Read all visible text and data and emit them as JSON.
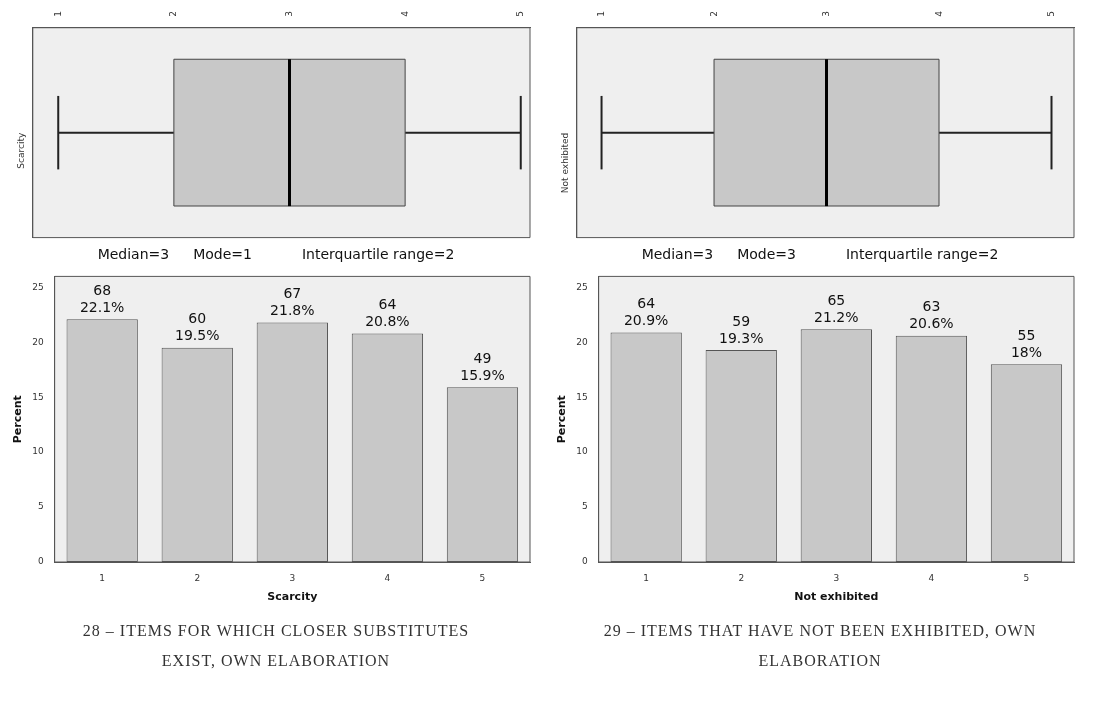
{
  "chart_data": [
    {
      "type": "box",
      "orientation": "horizontal",
      "categories": [
        "Scarcity"
      ],
      "color": "#c8c8c8",
      "boxes": [
        {
          "low": 1,
          "q1": 2,
          "median": 3,
          "q3": 4,
          "high": 5
        }
      ],
      "xlim": [
        0.78,
        5.08
      ],
      "xticks": [
        1,
        2,
        3,
        4,
        5
      ],
      "grid": false,
      "legend": false,
      "annotations": [
        "Median=3",
        "Mode=1",
        "Interquartile range=2"
      ]
    },
    {
      "type": "box",
      "orientation": "horizontal",
      "categories": [
        "Not exhibited"
      ],
      "color": "#c8c8c8",
      "boxes": [
        {
          "low": 1,
          "q1": 2,
          "median": 3,
          "q3": 4,
          "high": 5
        }
      ],
      "xlim": [
        0.78,
        5.2
      ],
      "xticks": [
        1,
        2,
        3,
        4,
        5
      ],
      "grid": false,
      "legend": false,
      "annotations": [
        "Median=3",
        "Mode=3",
        "Interquartile range=2"
      ]
    },
    {
      "type": "bar",
      "categories": [
        "1",
        "2",
        "3",
        "4",
        "5"
      ],
      "values": [
        22.1,
        19.5,
        21.8,
        20.8,
        15.9
      ],
      "color": "#c8c8c8",
      "value_labels": [
        "68\n22.1%",
        "60\n19.5%",
        "67\n21.8%",
        "64\n20.8%",
        "49\n15.9%"
      ],
      "xlabel": "Scarcity",
      "ylabel": "Percent",
      "ylim": [
        0,
        26
      ],
      "yticks": [
        0,
        5,
        10,
        15,
        20,
        25
      ],
      "grid": false,
      "legend": false,
      "annotations": [
        "28 – ITEMS FOR WHICH CLOSER SUBSTITUTES EXIST, OWN ELABORATION"
      ]
    },
    {
      "type": "bar",
      "categories": [
        "1",
        "2",
        "3",
        "4",
        "5"
      ],
      "values": [
        20.9,
        19.3,
        21.2,
        20.6,
        18
      ],
      "color": "#c8c8c8",
      "value_labels": [
        "64\n20.9%",
        "59\n19.3%",
        "65\n21.2%",
        "63\n20.6%",
        "55\n18%"
      ],
      "xlabel": "Not exhibited",
      "ylabel": "Percent",
      "ylim": [
        0,
        26
      ],
      "yticks": [
        0,
        5,
        10,
        15,
        20,
        25
      ],
      "grid": false,
      "legend": false,
      "annotations": [
        "29 – ITEMS THAT HAVE NOT BEEN EXHIBITED, OWN ELABORATION"
      ]
    }
  ]
}
